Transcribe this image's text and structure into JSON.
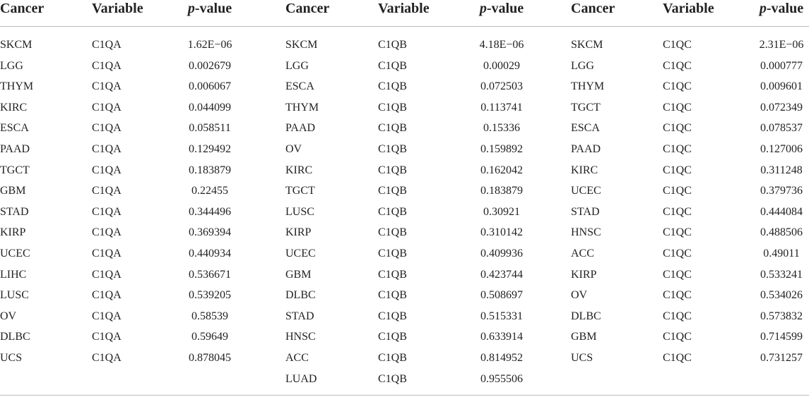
{
  "table": {
    "header": [
      "Cancer",
      "Variable",
      "p-value"
    ],
    "groups": [
      {
        "rows": [
          [
            "SKCM",
            "C1QA",
            "1.62E−06"
          ],
          [
            "LGG",
            "C1QA",
            "0.002679"
          ],
          [
            "THYM",
            "C1QA",
            "0.006067"
          ],
          [
            "KIRC",
            "C1QA",
            "0.044099"
          ],
          [
            "ESCA",
            "C1QA",
            "0.058511"
          ],
          [
            "PAAD",
            "C1QA",
            "0.129492"
          ],
          [
            "TGCT",
            "C1QA",
            "0.183879"
          ],
          [
            "GBM",
            "C1QA",
            "0.22455"
          ],
          [
            "STAD",
            "C1QA",
            "0.344496"
          ],
          [
            "KIRP",
            "C1QA",
            "0.369394"
          ],
          [
            "UCEC",
            "C1QA",
            "0.440934"
          ],
          [
            "LIHC",
            "C1QA",
            "0.536671"
          ],
          [
            "LUSC",
            "C1QA",
            "0.539205"
          ],
          [
            "OV",
            "C1QA",
            "0.58539"
          ],
          [
            "DLBC",
            "C1QA",
            "0.59649"
          ],
          [
            "UCS",
            "C1QA",
            "0.878045"
          ]
        ]
      },
      {
        "rows": [
          [
            "SKCM",
            "C1QB",
            "4.18E−06"
          ],
          [
            "LGG",
            "C1QB",
            "0.00029"
          ],
          [
            "ESCA",
            "C1QB",
            "0.072503"
          ],
          [
            "THYM",
            "C1QB",
            "0.113741"
          ],
          [
            "PAAD",
            "C1QB",
            "0.15336"
          ],
          [
            "OV",
            "C1QB",
            "0.159892"
          ],
          [
            "KIRC",
            "C1QB",
            "0.162042"
          ],
          [
            "TGCT",
            "C1QB",
            "0.183879"
          ],
          [
            "LUSC",
            "C1QB",
            "0.30921"
          ],
          [
            "KIRP",
            "C1QB",
            "0.310142"
          ],
          [
            "UCEC",
            "C1QB",
            "0.409936"
          ],
          [
            "GBM",
            "C1QB",
            "0.423744"
          ],
          [
            "DLBC",
            "C1QB",
            "0.508697"
          ],
          [
            "STAD",
            "C1QB",
            "0.515331"
          ],
          [
            "HNSC",
            "C1QB",
            "0.633914"
          ],
          [
            "ACC",
            "C1QB",
            "0.814952"
          ],
          [
            "LUAD",
            "C1QB",
            "0.955506"
          ]
        ]
      },
      {
        "rows": [
          [
            "SKCM",
            "C1QC",
            "2.31E−06"
          ],
          [
            "LGG",
            "C1QC",
            "0.000777"
          ],
          [
            "THYM",
            "C1QC",
            "0.009601"
          ],
          [
            "TGCT",
            "C1QC",
            "0.072349"
          ],
          [
            "ESCA",
            "C1QC",
            "0.078537"
          ],
          [
            "PAAD",
            "C1QC",
            "0.127006"
          ],
          [
            "KIRC",
            "C1QC",
            "0.311248"
          ],
          [
            "UCEC",
            "C1QC",
            "0.379736"
          ],
          [
            "STAD",
            "C1QC",
            "0.444084"
          ],
          [
            "HNSC",
            "C1QC",
            "0.488506"
          ],
          [
            "ACC",
            "C1QC",
            "0.49011"
          ],
          [
            "KIRP",
            "C1QC",
            "0.533241"
          ],
          [
            "OV",
            "C1QC",
            "0.534026"
          ],
          [
            "DLBC",
            "C1QC",
            "0.573832"
          ],
          [
            "GBM",
            "C1QC",
            "0.714599"
          ],
          [
            "UCS",
            "C1QC",
            "0.731257"
          ]
        ]
      }
    ]
  }
}
